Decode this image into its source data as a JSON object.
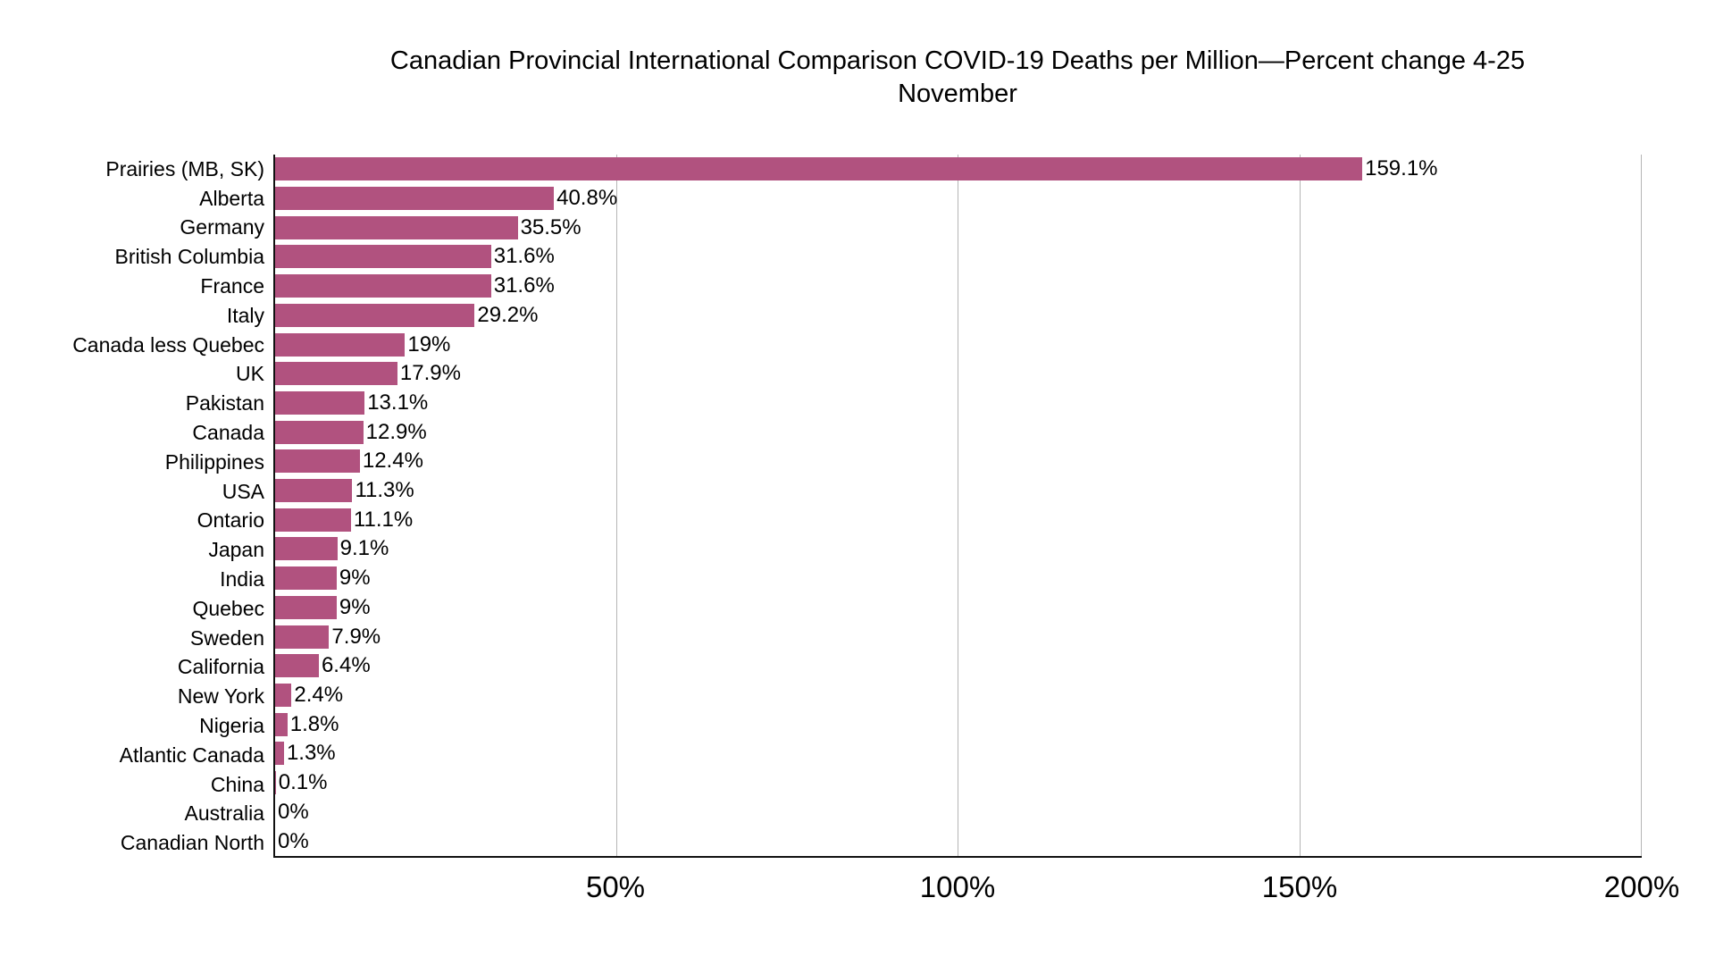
{
  "title": {
    "line1": "Canadian Provincial International Comparison COVID-19 Deaths per Million—Percent change 4-25",
    "line2": "November"
  },
  "chart_data": {
    "type": "bar",
    "orientation": "horizontal",
    "title": "Canadian Provincial International Comparison COVID-19 Deaths per Million—Percent change 4-25 November",
    "xlabel": "",
    "ylabel": "",
    "xlim": [
      0,
      200
    ],
    "grid": "vertical-gridlines-on",
    "legend": "none",
    "bar_color": "#b1527f",
    "gridline_color": "#b5b5b5",
    "axis_color": "#111111",
    "x_ticks": [
      {
        "value": 50,
        "label": "50%"
      },
      {
        "value": 100,
        "label": "100%"
      },
      {
        "value": 150,
        "label": "150%"
      },
      {
        "value": 200,
        "label": "200%"
      }
    ],
    "points": [
      {
        "label": "Prairies (MB, SK)",
        "value": 159.1,
        "display": "159.1%"
      },
      {
        "label": "Alberta",
        "value": 40.8,
        "display": "40.8%"
      },
      {
        "label": "Germany",
        "value": 35.5,
        "display": "35.5%"
      },
      {
        "label": "British Columbia",
        "value": 31.6,
        "display": "31.6%"
      },
      {
        "label": "France",
        "value": 31.6,
        "display": "31.6%"
      },
      {
        "label": "Italy",
        "value": 29.2,
        "display": "29.2%"
      },
      {
        "label": "Canada less Quebec",
        "value": 19,
        "display": "19%"
      },
      {
        "label": "UK",
        "value": 17.9,
        "display": "17.9%"
      },
      {
        "label": "Pakistan",
        "value": 13.1,
        "display": "13.1%"
      },
      {
        "label": "Canada",
        "value": 12.9,
        "display": "12.9%"
      },
      {
        "label": "Philippines",
        "value": 12.4,
        "display": "12.4%"
      },
      {
        "label": "USA",
        "value": 11.3,
        "display": "11.3%"
      },
      {
        "label": "Ontario",
        "value": 11.1,
        "display": "11.1%"
      },
      {
        "label": "Japan",
        "value": 9.1,
        "display": "9.1%"
      },
      {
        "label": "India",
        "value": 9,
        "display": "9%"
      },
      {
        "label": "Quebec",
        "value": 9,
        "display": "9%"
      },
      {
        "label": "Sweden",
        "value": 7.9,
        "display": "7.9%"
      },
      {
        "label": "California",
        "value": 6.4,
        "display": "6.4%"
      },
      {
        "label": "New York",
        "value": 2.4,
        "display": "2.4%"
      },
      {
        "label": "Nigeria",
        "value": 1.8,
        "display": "1.8%"
      },
      {
        "label": "Atlantic Canada",
        "value": 1.3,
        "display": "1.3%"
      },
      {
        "label": "China",
        "value": 0.1,
        "display": "0.1%"
      },
      {
        "label": "Australia",
        "value": 0,
        "display": "0%"
      },
      {
        "label": "Canadian North",
        "value": 0,
        "display": "0%"
      }
    ]
  }
}
